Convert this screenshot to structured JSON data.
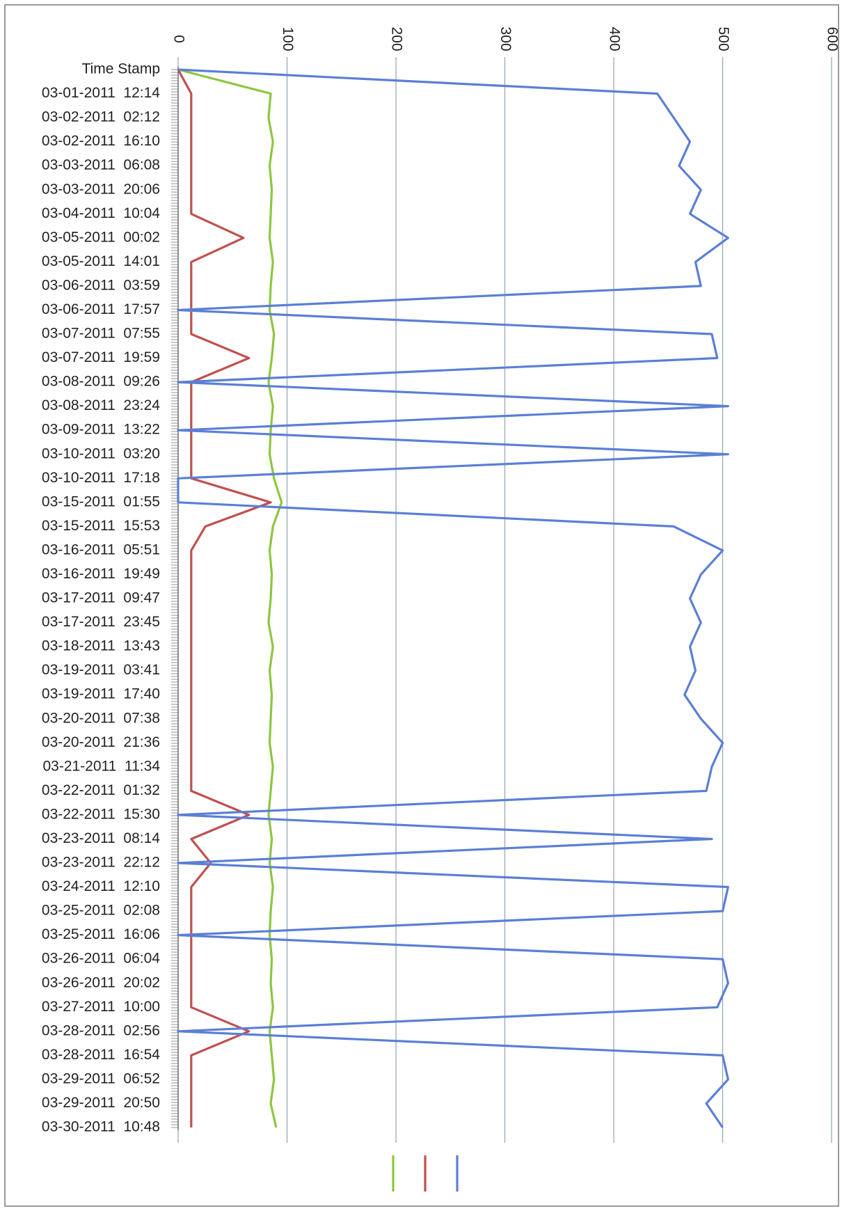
{
  "chart_data": {
    "type": "line",
    "orientation": "rotated-90",
    "title": "",
    "xlabel": "",
    "ylabel": "",
    "ylim": [
      0,
      600
    ],
    "y_ticks": [
      "0",
      "100",
      "200",
      "300",
      "400",
      "500",
      "600"
    ],
    "grid": true,
    "legend": {
      "position": "bottom",
      "entries": []
    },
    "categories": [
      "Time Stamp",
      "03-01-2011  12:14",
      "03-02-2011  02:12",
      "03-02-2011  16:10",
      "03-03-2011  06:08",
      "03-03-2011  20:06",
      "03-04-2011  10:04",
      "03-05-2011  00:02",
      "03-05-2011  14:01",
      "03-06-2011  03:59",
      "03-06-2011  17:57",
      "03-07-2011  07:55",
      "03-07-2011  19:59",
      "03-08-2011  09:26",
      "03-08-2011  23:24",
      "03-09-2011  13:22",
      "03-10-2011  03:20",
      "03-10-2011  17:18",
      "03-15-2011  01:55",
      "03-15-2011  15:53",
      "03-16-2011  05:51",
      "03-16-2011  19:49",
      "03-17-2011  09:47",
      "03-17-2011  23:45",
      "03-18-2011  13:43",
      "03-19-2011  03:41",
      "03-19-2011  17:40",
      "03-20-2011  07:38",
      "03-20-2011  21:36",
      "03-21-2011  11:34",
      "03-22-2011  01:32",
      "03-22-2011  15:30",
      "03-23-2011  08:14",
      "03-23-2011  22:12",
      "03-24-2011  12:10",
      "03-25-2011  02:08",
      "03-25-2011  16:06",
      "03-26-2011  06:04",
      "03-26-2011  20:02",
      "03-27-2011  10:00",
      "03-28-2011  02:56",
      "03-28-2011  16:54",
      "03-29-2011  06:52",
      "03-29-2011  20:50",
      "03-30-2011  10:48"
    ],
    "series": [
      {
        "color": "#8dc63f",
        "values": [
          0,
          85,
          83,
          87,
          84,
          86,
          85,
          84,
          87,
          85,
          84,
          88,
          86,
          83,
          87,
          85,
          84,
          88,
          95,
          87,
          84,
          86,
          85,
          83,
          87,
          84,
          86,
          85,
          84,
          87,
          85,
          83,
          86,
          84,
          87,
          85,
          84,
          86,
          85,
          87,
          84,
          86,
          88,
          85,
          90
        ]
      },
      {
        "color": "#c0504d",
        "values": [
          0,
          12,
          12,
          12,
          12,
          12,
          12,
          60,
          12,
          12,
          12,
          12,
          65,
          12,
          12,
          12,
          12,
          12,
          85,
          25,
          12,
          12,
          12,
          12,
          12,
          12,
          12,
          12,
          12,
          12,
          12,
          65,
          12,
          30,
          12,
          12,
          12,
          12,
          12,
          12,
          65,
          12,
          12,
          12,
          12
        ]
      },
      {
        "color": "#5b7fd6",
        "values": [
          0,
          440,
          455,
          470,
          460,
          480,
          470,
          505,
          475,
          480,
          0,
          490,
          495,
          0,
          505,
          0,
          505,
          0,
          0,
          455,
          500,
          480,
          470,
          480,
          470,
          475,
          465,
          480,
          500,
          490,
          485,
          0,
          490,
          0,
          505,
          500,
          0,
          500,
          505,
          495,
          0,
          500,
          505,
          485,
          500
        ]
      }
    ]
  }
}
